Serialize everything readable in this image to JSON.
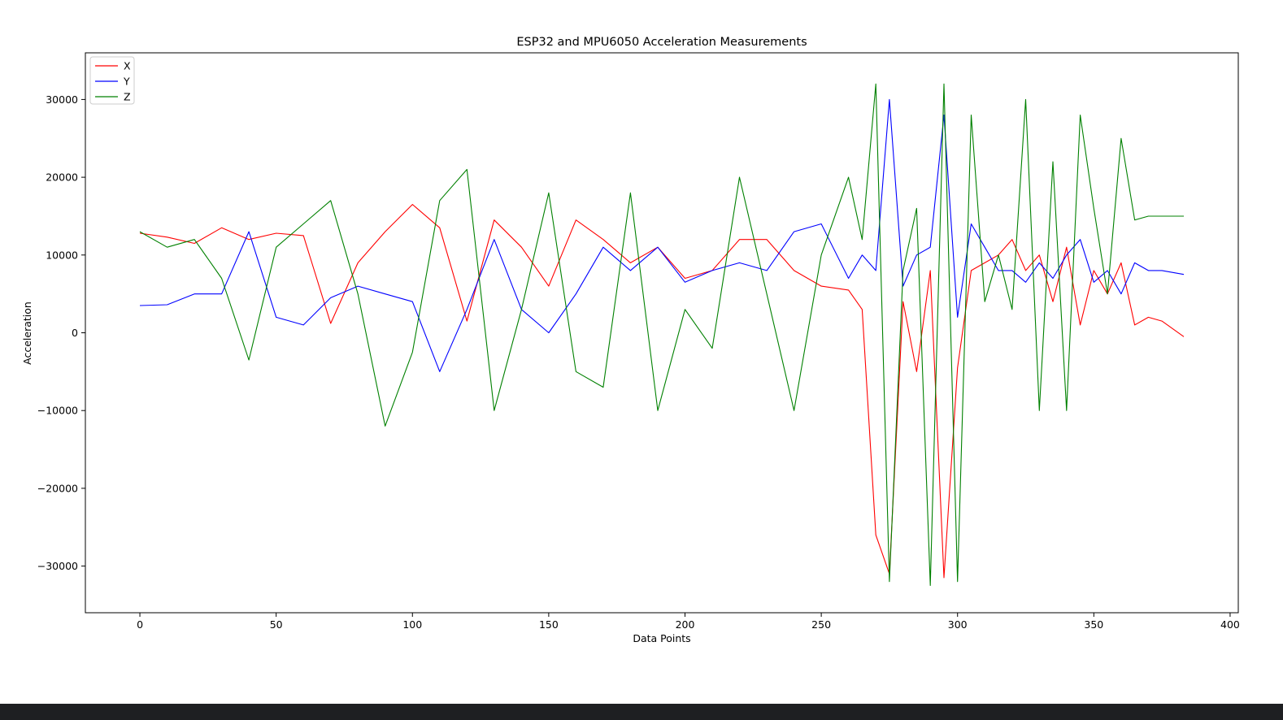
{
  "chart_data": {
    "type": "line",
    "title": "ESP32 and MPU6050 Acceleration Measurements",
    "xlabel": "Data Points",
    "ylabel": "Acceleration",
    "xlim": [
      -20,
      403
    ],
    "ylim": [
      -36000,
      36000
    ],
    "x_ticks": [
      0,
      50,
      100,
      150,
      200,
      250,
      300,
      350,
      400
    ],
    "x_tick_labels": [
      "0",
      "50",
      "100",
      "150",
      "200",
      "250",
      "300",
      "350",
      "400"
    ],
    "y_ticks": [
      -30000,
      -20000,
      -10000,
      0,
      10000,
      20000,
      30000
    ],
    "y_tick_labels": [
      "−30000",
      "−20000",
      "−10000",
      "0",
      "10000",
      "20000",
      "30000"
    ],
    "grid": false,
    "legend_position": "top-left",
    "x": [
      0,
      10,
      20,
      30,
      40,
      50,
      60,
      70,
      80,
      90,
      100,
      110,
      120,
      130,
      140,
      150,
      160,
      170,
      180,
      190,
      200,
      210,
      220,
      230,
      240,
      250,
      260,
      265,
      270,
      275,
      280,
      285,
      290,
      295,
      300,
      305,
      310,
      315,
      320,
      325,
      330,
      335,
      340,
      345,
      350,
      355,
      360,
      365,
      370,
      375,
      383
    ],
    "series": [
      {
        "name": "X",
        "color": "#ff0000",
        "values": [
          12800,
          12300,
          11500,
          13500,
          12000,
          12800,
          12500,
          1200,
          9000,
          13000,
          16500,
          13500,
          1500,
          14500,
          11000,
          6000,
          14500,
          12000,
          9000,
          11000,
          7000,
          8000,
          12000,
          12000,
          8000,
          6000,
          5500,
          3000,
          -26000,
          -31000,
          4000,
          -5000,
          8000,
          -31500,
          -4500,
          8000,
          9000,
          10000,
          12000,
          8000,
          10000,
          4000,
          11000,
          1000,
          8000,
          5000,
          9000,
          1000,
          2000,
          1500,
          -500
        ]
      },
      {
        "name": "Y",
        "color": "#0000ff",
        "values": [
          3500,
          3600,
          5000,
          5000,
          13000,
          2000,
          1000,
          4500,
          6000,
          5000,
          4000,
          -5000,
          3000,
          12000,
          3000,
          0,
          5000,
          11000,
          8000,
          11000,
          6500,
          8000,
          9000,
          8000,
          13000,
          14000,
          7000,
          10000,
          8000,
          30000,
          6000,
          10000,
          11000,
          28000,
          2000,
          14000,
          11000,
          8000,
          8000,
          6500,
          9000,
          7000,
          10000,
          12000,
          6500,
          8000,
          5000,
          9000,
          8000,
          8000,
          7500
        ]
      },
      {
        "name": "Z",
        "color": "#008000",
        "values": [
          13000,
          11000,
          12000,
          7000,
          -3500,
          11000,
          14000,
          17000,
          5000,
          -12000,
          -2500,
          17000,
          21000,
          -10000,
          3000,
          18000,
          -5000,
          -7000,
          18000,
          -10000,
          3000,
          -2000,
          20000,
          5000,
          -10000,
          10000,
          20000,
          12000,
          32000,
          -32000,
          8000,
          16000,
          -32500,
          32000,
          -32000,
          28000,
          4000,
          10000,
          3000,
          30000,
          -10000,
          22000,
          -10000,
          28000,
          16000,
          5000,
          25000,
          14500,
          15000,
          15000,
          15000
        ]
      }
    ]
  }
}
